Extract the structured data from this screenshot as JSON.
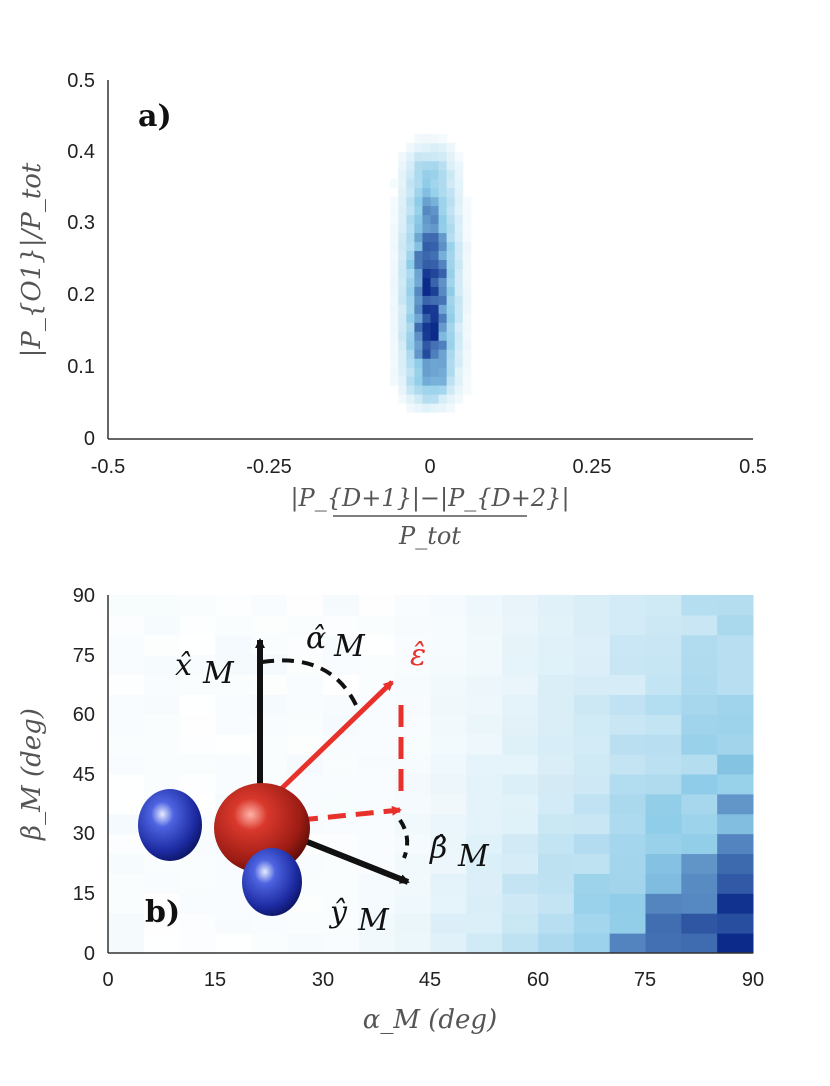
{
  "chart_data": [
    {
      "panel_label": "a)",
      "type": "heatmap",
      "colormap": "white-to-blue",
      "xlim": [
        -0.5,
        0.5
      ],
      "ylim": [
        0,
        0.5
      ],
      "x_ticks": [
        "-0.5",
        "-0.25",
        "0",
        "0.25",
        "0.5"
      ],
      "y_ticks": [
        "0",
        "0.1",
        "0.2",
        "0.3",
        "0.4",
        "0.5"
      ],
      "xlabel_numerator": "|P_{D+1}|−|P_{D+2}|",
      "xlabel_denominator": "P_tot",
      "ylabel": "|P_{O1}|/P_tot",
      "distribution": {
        "center_x": 0.0,
        "x_spread": 0.025,
        "y_range": [
          0.03,
          0.43
        ],
        "peak_y": 0.2
      }
    },
    {
      "panel_label": "b)",
      "type": "heatmap",
      "colormap": "white-to-blue",
      "xlim": [
        0,
        90
      ],
      "ylim": [
        0,
        90
      ],
      "x_ticks": [
        "0",
        "15",
        "30",
        "45",
        "60",
        "75",
        "90"
      ],
      "y_ticks": [
        "0",
        "15",
        "30",
        "45",
        "60",
        "75",
        "90"
      ],
      "xlabel": "α_M  (deg)",
      "ylabel": "β_M  (deg)",
      "bin_size_deg": 5,
      "trend": "density increases toward large α_M and small β_M",
      "vector_labels": {
        "x_axis": "x̂",
        "y_axis": "ŷ",
        "alpha": "α̂",
        "beta": "β̂",
        "subscript": "M",
        "epsilon": "ε̂"
      }
    }
  ],
  "colors": {
    "heat_low": "#ffffff",
    "heat_mid": "#8ccbe8",
    "heat_high": "#0b2a8a",
    "epsilon": "#e8312b",
    "vectors": "#111111",
    "oxygen": "#b3261e",
    "hydrogen": "#2536b0"
  }
}
